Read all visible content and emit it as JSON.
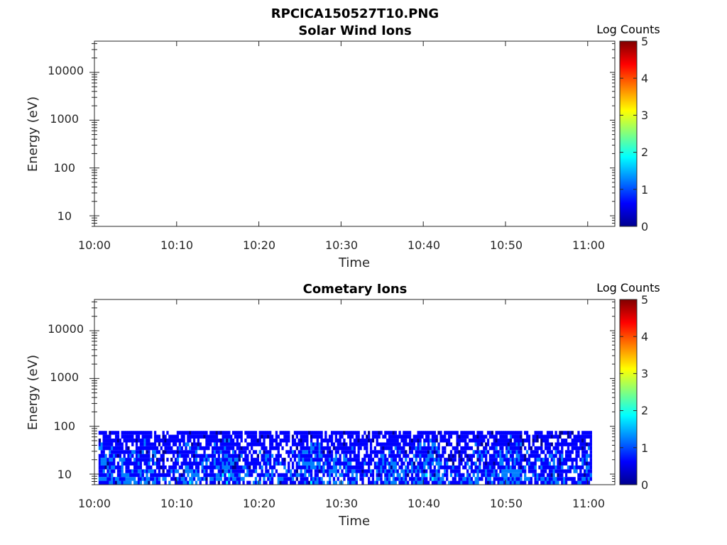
{
  "figure": {
    "title": "RPCICA150527T10.PNG"
  },
  "colormap": [
    "#00008f",
    "#0000ff",
    "#0080ff",
    "#00ffff",
    "#80ff80",
    "#ffff00",
    "#ff8000",
    "#ff0000",
    "#800000"
  ],
  "chart_data": [
    {
      "type": "heatmap",
      "title": "Solar Wind Ions",
      "xlabel": "Time",
      "ylabel": "Energy (eV)",
      "x_ticks": [
        "10:00",
        "10:10",
        "10:20",
        "10:30",
        "10:40",
        "10:50",
        "11:00"
      ],
      "x_range_minutes": [
        0,
        63.3
      ],
      "y_ticks": [
        "10",
        "100",
        "1000",
        "10000"
      ],
      "y_scale": "log",
      "y_range": [
        6,
        45000
      ],
      "colorbar": {
        "label": "Log Counts",
        "ticks": [
          "0",
          "1",
          "2",
          "3",
          "4",
          "5"
        ],
        "range": [
          0,
          5
        ]
      },
      "data_extent": null
    },
    {
      "type": "heatmap",
      "title": "Cometary Ions",
      "xlabel": "Time",
      "ylabel": "Energy (eV)",
      "x_ticks": [
        "10:00",
        "10:10",
        "10:20",
        "10:30",
        "10:40",
        "10:50",
        "11:00"
      ],
      "x_range_minutes": [
        0,
        63.3
      ],
      "y_ticks": [
        "10",
        "100",
        "1000",
        "10000"
      ],
      "y_scale": "log",
      "y_range": [
        6,
        45000
      ],
      "colorbar": {
        "label": "Log Counts",
        "ticks": [
          "0",
          "1",
          "2",
          "3",
          "4",
          "5"
        ],
        "range": [
          0,
          5
        ]
      },
      "data_extent": {
        "time_minutes": [
          0.5,
          60.5
        ],
        "energy_eV": [
          6,
          80
        ],
        "log_counts_typical": [
          0,
          1.8
        ]
      }
    }
  ]
}
